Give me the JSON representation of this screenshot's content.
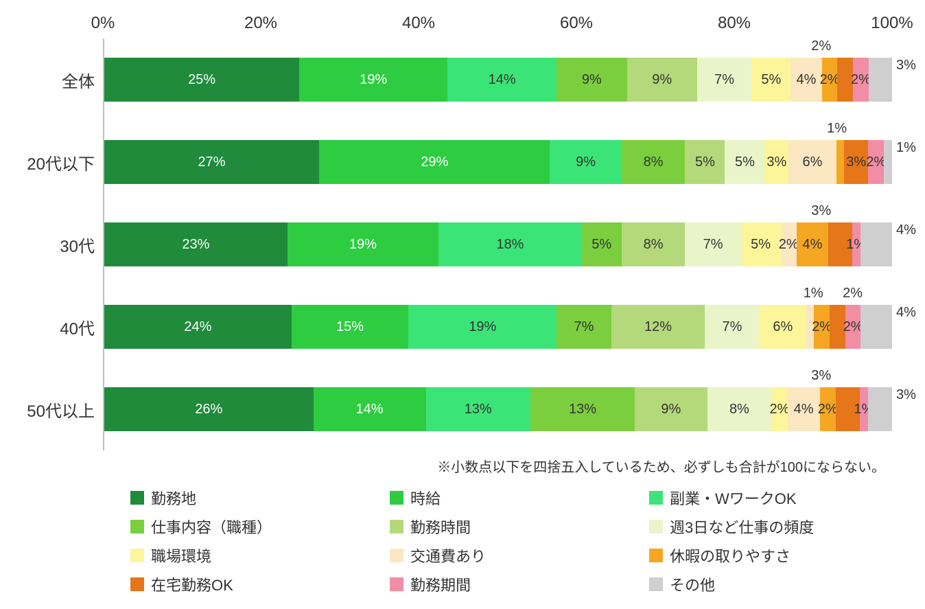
{
  "chart": {
    "type": "stacked-bar-horizontal",
    "axis_ticks": [
      "0%",
      "20%",
      "40%",
      "60%",
      "80%",
      "100%"
    ],
    "axis_tick_pct": [
      0,
      20,
      40,
      60,
      80,
      100
    ],
    "axis_fontsize": 24,
    "label_fontsize": 24,
    "value_fontsize": 20,
    "background_color": "#ffffff",
    "axis_line_color": "#bfbfbf",
    "text_color": "#333333",
    "series": [
      {
        "key": "s1",
        "label": "勤務地",
        "color": "#1f8b3b",
        "text": "#ffffff"
      },
      {
        "key": "s2",
        "label": "時給",
        "color": "#2ecc40",
        "text": "#ffffff"
      },
      {
        "key": "s3",
        "label": "副業・WワークOK",
        "color": "#3be477",
        "text": "#333333"
      },
      {
        "key": "s4",
        "label": "仕事内容（職種）",
        "color": "#7bcf3e",
        "text": "#333333"
      },
      {
        "key": "s5",
        "label": "勤務時間",
        "color": "#b4d97a",
        "text": "#333333"
      },
      {
        "key": "s6",
        "label": "週3日など仕事の頻度",
        "color": "#e9f5c9",
        "text": "#333333"
      },
      {
        "key": "s7",
        "label": "職場環境",
        "color": "#fdf59a",
        "text": "#333333"
      },
      {
        "key": "s8",
        "label": "交通費あり",
        "color": "#fbe7c2",
        "text": "#333333"
      },
      {
        "key": "s9",
        "label": "休暇の取りやすさ",
        "color": "#f5a623",
        "text": "#333333"
      },
      {
        "key": "s10",
        "label": "在宅勤務OK",
        "color": "#e6761a",
        "text": "#333333"
      },
      {
        "key": "s11",
        "label": "勤務期間",
        "color": "#f28da6",
        "text": "#333333"
      },
      {
        "key": "s12",
        "label": "その他",
        "color": "#cfcfcf",
        "text": "#333333"
      }
    ],
    "rows": [
      {
        "label": "全体",
        "callouts": [
          {
            "text": "2%",
            "at_pct": 91
          }
        ],
        "values": [
          {
            "k": "s1",
            "v": 25,
            "show": "25%"
          },
          {
            "k": "s2",
            "v": 19,
            "show": "19%"
          },
          {
            "k": "s3",
            "v": 14,
            "show": "14%"
          },
          {
            "k": "s4",
            "v": 9,
            "show": "9%"
          },
          {
            "k": "s5",
            "v": 9,
            "show": "9%"
          },
          {
            "k": "s6",
            "v": 7,
            "show": "7%"
          },
          {
            "k": "s7",
            "v": 5,
            "show": "5%"
          },
          {
            "k": "s8",
            "v": 4,
            "show": "4%"
          },
          {
            "k": "s9",
            "v": 2,
            "show": "2%"
          },
          {
            "k": "s10",
            "v": 2,
            "show": ""
          },
          {
            "k": "s11",
            "v": 2,
            "show": "2%"
          },
          {
            "k": "s12",
            "v": 3,
            "show": ""
          }
        ],
        "trailing": "3%"
      },
      {
        "label": "20代以下",
        "callouts": [
          {
            "text": "1%",
            "at_pct": 93
          }
        ],
        "values": [
          {
            "k": "s1",
            "v": 27,
            "show": "27%"
          },
          {
            "k": "s2",
            "v": 29,
            "show": "29%"
          },
          {
            "k": "s3",
            "v": 9,
            "show": "9%"
          },
          {
            "k": "s4",
            "v": 8,
            "show": "8%"
          },
          {
            "k": "s5",
            "v": 5,
            "show": "5%"
          },
          {
            "k": "s6",
            "v": 5,
            "show": "5%"
          },
          {
            "k": "s7",
            "v": 3,
            "show": "3%"
          },
          {
            "k": "s8",
            "v": 6,
            "show": "6%"
          },
          {
            "k": "s9",
            "v": 1,
            "show": ""
          },
          {
            "k": "s10",
            "v": 3,
            "show": "3%"
          },
          {
            "k": "s11",
            "v": 2,
            "show": "2%"
          },
          {
            "k": "s12",
            "v": 1,
            "show": ""
          }
        ],
        "trailing": "1%"
      },
      {
        "label": "30代",
        "callouts": [
          {
            "text": "3%",
            "at_pct": 91
          }
        ],
        "values": [
          {
            "k": "s1",
            "v": 23,
            "show": "23%"
          },
          {
            "k": "s2",
            "v": 19,
            "show": "19%"
          },
          {
            "k": "s3",
            "v": 18,
            "show": "18%"
          },
          {
            "k": "s4",
            "v": 5,
            "show": "5%"
          },
          {
            "k": "s5",
            "v": 8,
            "show": "8%"
          },
          {
            "k": "s6",
            "v": 7,
            "show": "7%"
          },
          {
            "k": "s7",
            "v": 5,
            "show": "5%"
          },
          {
            "k": "s8",
            "v": 2,
            "show": "2%"
          },
          {
            "k": "s9",
            "v": 4,
            "show": "4%"
          },
          {
            "k": "s10",
            "v": 3,
            "show": ""
          },
          {
            "k": "s11",
            "v": 1,
            "show": "1%"
          },
          {
            "k": "s12",
            "v": 4,
            "show": ""
          }
        ],
        "trailing": "4%"
      },
      {
        "label": "40代",
        "callouts": [
          {
            "text": "1%",
            "at_pct": 90
          },
          {
            "text": "2%",
            "at_pct": 95
          }
        ],
        "values": [
          {
            "k": "s1",
            "v": 24,
            "show": "24%"
          },
          {
            "k": "s2",
            "v": 15,
            "show": "15%"
          },
          {
            "k": "s3",
            "v": 19,
            "show": "19%"
          },
          {
            "k": "s4",
            "v": 7,
            "show": "7%"
          },
          {
            "k": "s5",
            "v": 12,
            "show": "12%"
          },
          {
            "k": "s6",
            "v": 7,
            "show": "7%"
          },
          {
            "k": "s7",
            "v": 6,
            "show": "6%"
          },
          {
            "k": "s8",
            "v": 1,
            "show": ""
          },
          {
            "k": "s9",
            "v": 2,
            "show": "2%"
          },
          {
            "k": "s10",
            "v": 2,
            "show": ""
          },
          {
            "k": "s11",
            "v": 2,
            "show": "2%"
          },
          {
            "k": "s12",
            "v": 4,
            "show": ""
          }
        ],
        "trailing": "4%"
      },
      {
        "label": "50代以上",
        "callouts": [
          {
            "text": "3%",
            "at_pct": 91
          }
        ],
        "values": [
          {
            "k": "s1",
            "v": 26,
            "show": "26%"
          },
          {
            "k": "s2",
            "v": 14,
            "show": "14%"
          },
          {
            "k": "s3",
            "v": 13,
            "show": "13%"
          },
          {
            "k": "s4",
            "v": 13,
            "show": "13%"
          },
          {
            "k": "s5",
            "v": 9,
            "show": "9%"
          },
          {
            "k": "s6",
            "v": 8,
            "show": "8%"
          },
          {
            "k": "s7",
            "v": 2,
            "show": "2%"
          },
          {
            "k": "s8",
            "v": 4,
            "show": "4%"
          },
          {
            "k": "s9",
            "v": 2,
            "show": "2%"
          },
          {
            "k": "s10",
            "v": 3,
            "show": ""
          },
          {
            "k": "s11",
            "v": 1,
            "show": "1%"
          },
          {
            "k": "s12",
            "v": 3,
            "show": ""
          }
        ],
        "trailing": "3%"
      }
    ],
    "footnote": "※小数点以下を四捨五入しているため、必ずしも合計が100にならない。"
  }
}
